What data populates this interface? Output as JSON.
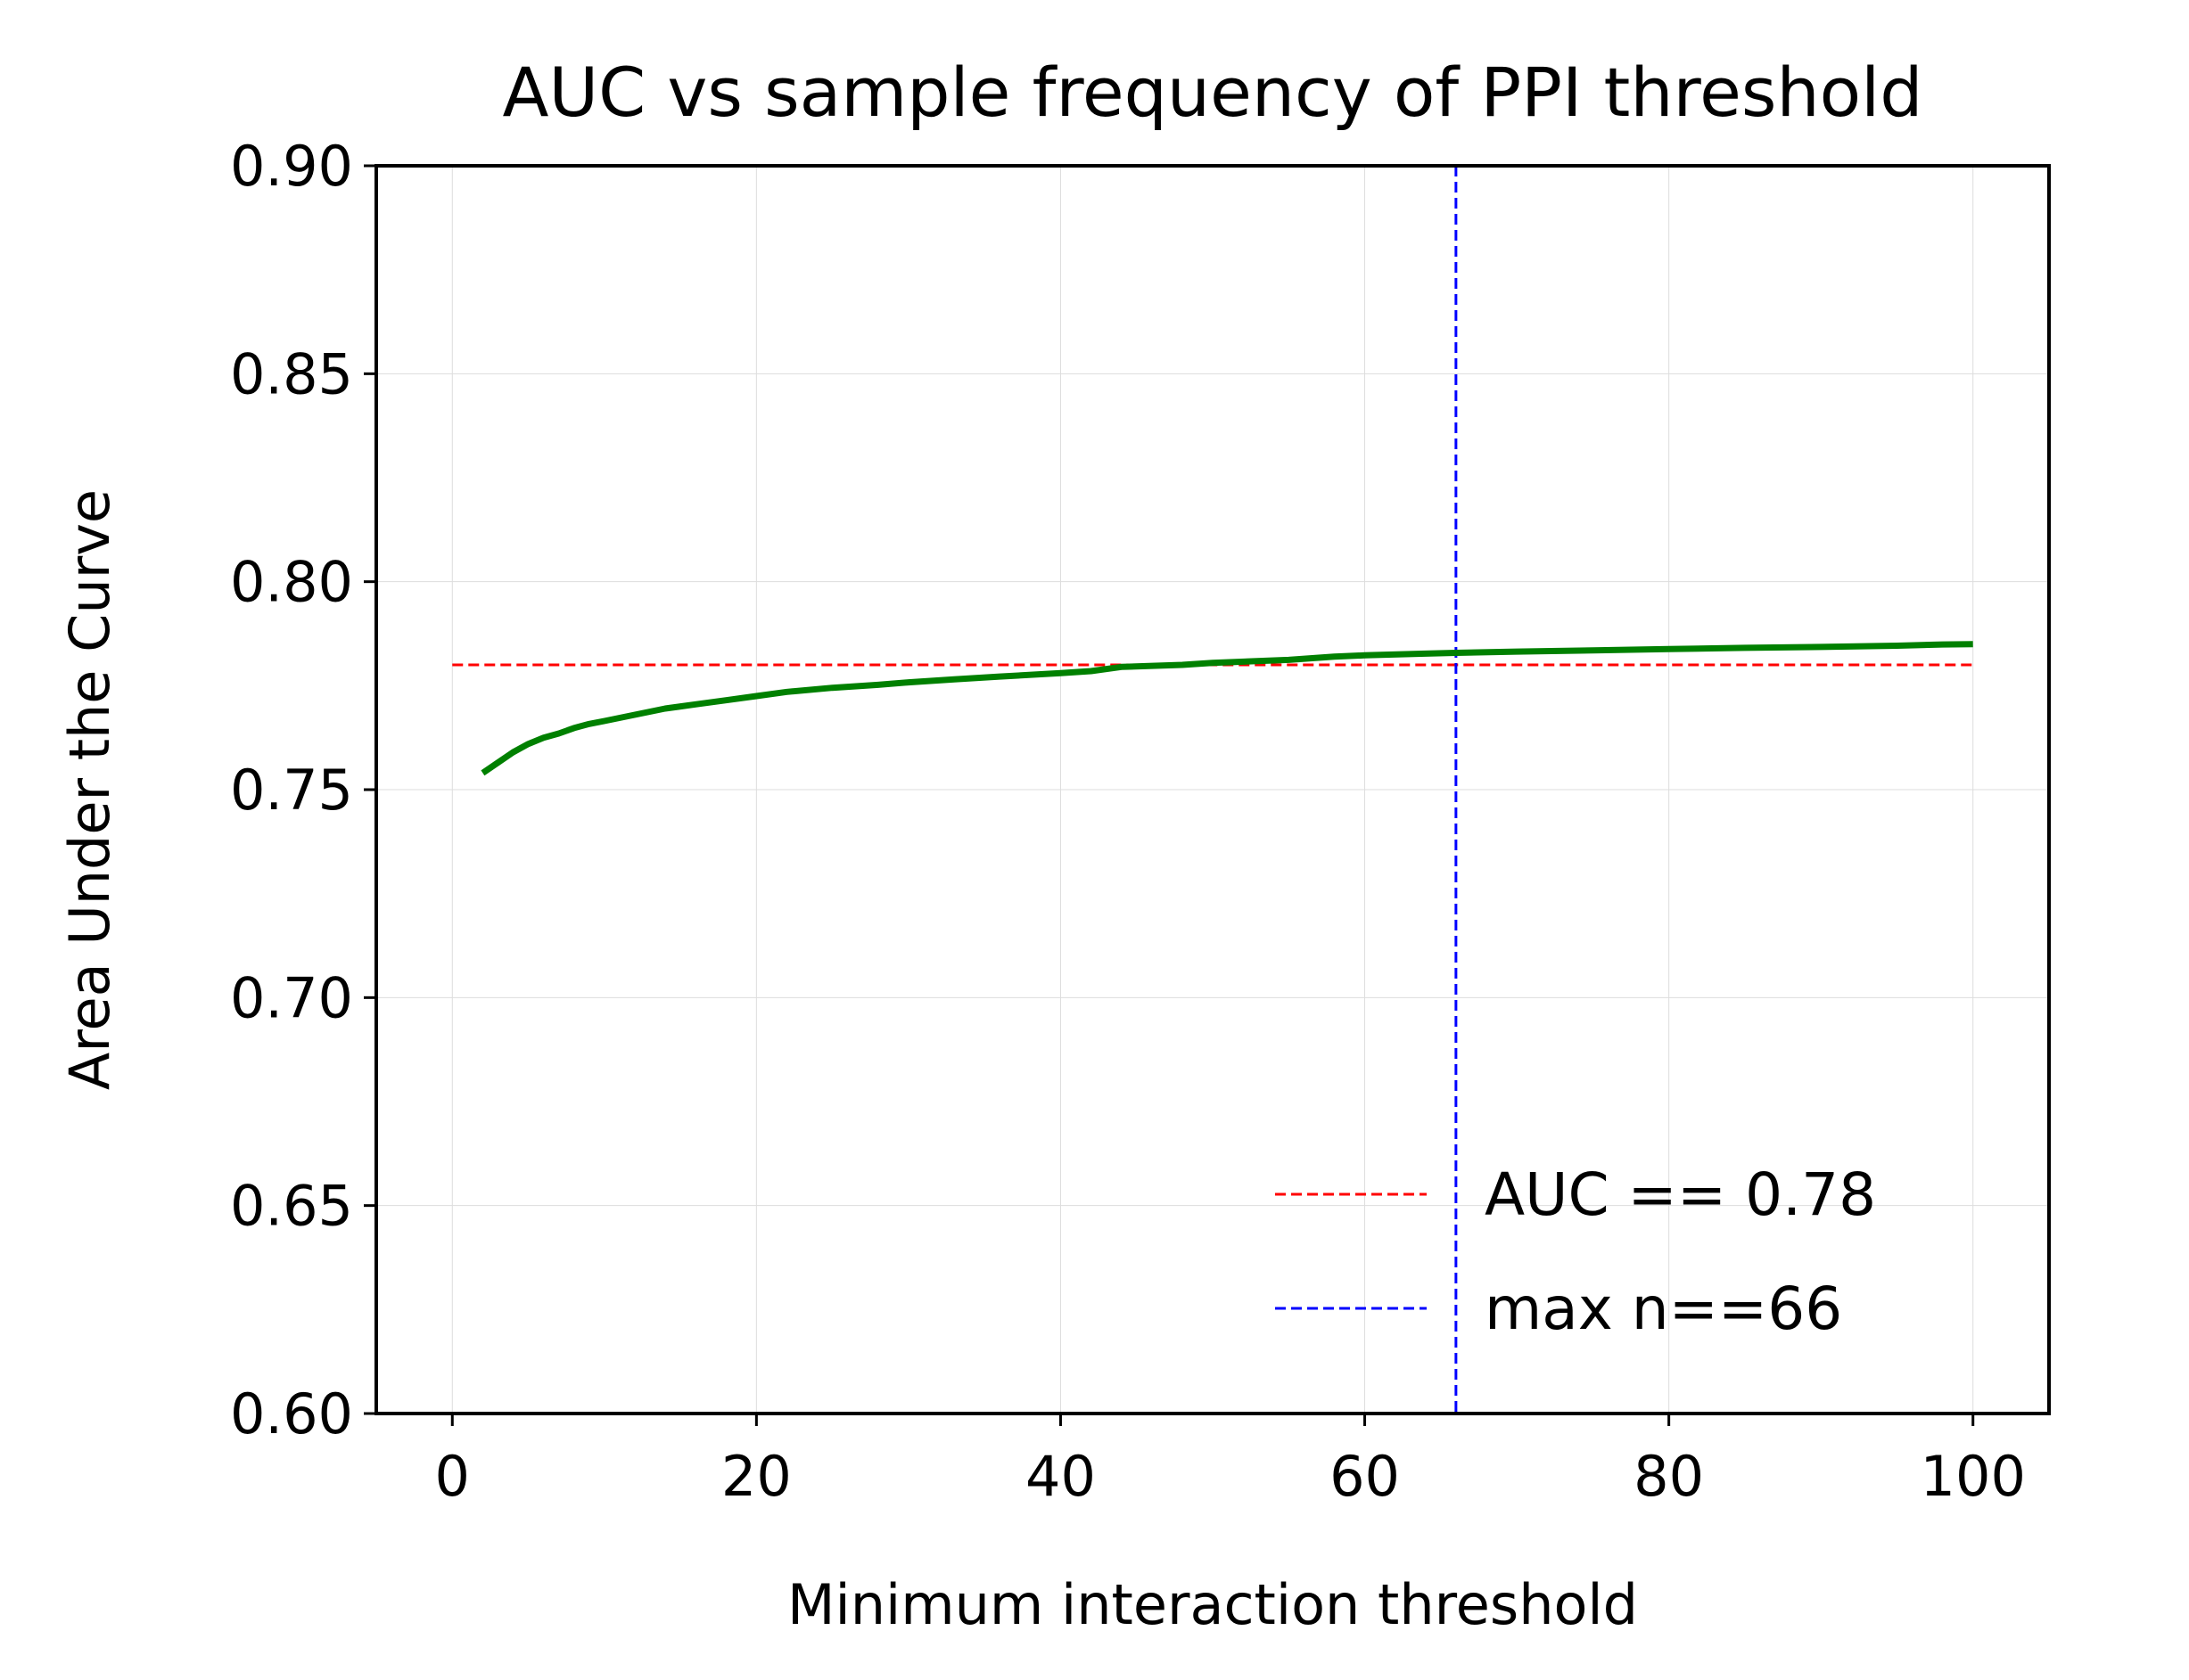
{
  "chart_data": {
    "type": "line",
    "title": "AUC vs sample frequency of PPI threshold",
    "xlabel": "Minimum interaction threshold",
    "ylabel": "Area Under the Curve",
    "xlim": [
      -5,
      105
    ],
    "ylim": [
      0.6,
      0.9
    ],
    "xticks": [
      0,
      20,
      40,
      60,
      80,
      100
    ],
    "xtick_labels": [
      "0",
      "20",
      "40",
      "60",
      "80",
      "100"
    ],
    "yticks": [
      0.6,
      0.65,
      0.7,
      0.75,
      0.8,
      0.85,
      0.9
    ],
    "ytick_labels": [
      "0.60",
      "0.65",
      "0.70",
      "0.75",
      "0.80",
      "0.85",
      "0.90"
    ],
    "grid": true,
    "legend_position": "lower-right",
    "series": [
      {
        "color": "#008000",
        "style": "solid",
        "x": [
          2,
          3,
          4,
          5,
          6,
          7,
          8,
          9,
          10,
          12,
          14,
          16,
          18,
          20,
          22,
          25,
          28,
          30,
          33,
          36,
          40,
          42,
          44,
          48,
          50,
          55,
          58,
          60,
          64,
          66,
          70,
          75,
          80,
          85,
          90,
          95,
          98,
          100
        ],
        "y": [
          0.754,
          0.7565,
          0.759,
          0.761,
          0.7625,
          0.7635,
          0.7648,
          0.7658,
          0.7665,
          0.768,
          0.7695,
          0.7705,
          0.7715,
          0.7725,
          0.7735,
          0.7745,
          0.7752,
          0.7758,
          0.7765,
          0.7772,
          0.778,
          0.7785,
          0.7795,
          0.78,
          0.7805,
          0.7812,
          0.782,
          0.7823,
          0.7827,
          0.7829,
          0.7832,
          0.7835,
          0.7838,
          0.7841,
          0.7843,
          0.7846,
          0.7849,
          0.785
        ]
      }
    ],
    "reference_lines": [
      {
        "orientation": "horizontal",
        "value": 0.78,
        "xrange": [
          0,
          100
        ],
        "color": "#ff0000",
        "style": "dashed",
        "label": "AUC == 0.78"
      },
      {
        "orientation": "vertical",
        "value": 66,
        "color": "#0000ff",
        "style": "dashed",
        "label": "max n==66"
      }
    ]
  }
}
